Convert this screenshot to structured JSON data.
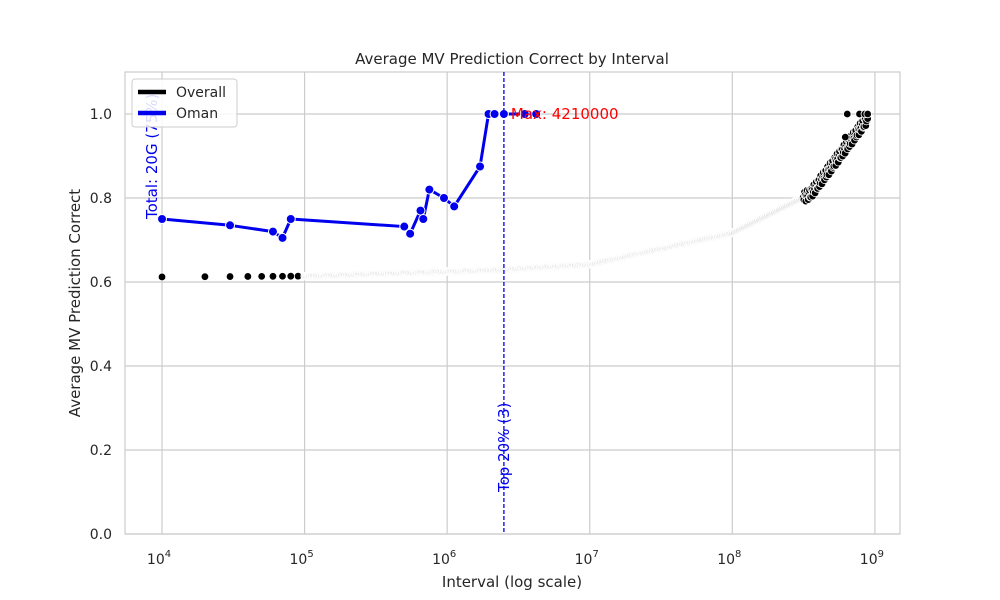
{
  "chart_data": {
    "type": "line",
    "title": "Average MV Prediction Correct by Interval",
    "xlabel": "Interval (log scale)",
    "ylabel": "Average MV Prediction Correct",
    "xscale": "log",
    "xlim": [
      5500,
      1500000000
    ],
    "ylim": [
      0,
      1.1
    ],
    "x_ticks": [
      {
        "value": 10000,
        "label": "10",
        "exp": "4"
      },
      {
        "value": 100000,
        "label": "10",
        "exp": "5"
      },
      {
        "value": 1000000,
        "label": "10",
        "exp": "6"
      },
      {
        "value": 10000000,
        "label": "10",
        "exp": "7"
      },
      {
        "value": 100000000,
        "label": "10",
        "exp": "8"
      },
      {
        "value": 1000000000,
        "label": "10",
        "exp": "9"
      }
    ],
    "y_ticks": [
      {
        "value": 0.0,
        "label": "0.0"
      },
      {
        "value": 0.2,
        "label": "0.2"
      },
      {
        "value": 0.4,
        "label": "0.4"
      },
      {
        "value": 0.6,
        "label": "0.6"
      },
      {
        "value": 0.8,
        "label": "0.8"
      },
      {
        "value": 1.0,
        "label": "1.0"
      }
    ],
    "grid": true,
    "legend": {
      "position": "top-left",
      "entries": [
        {
          "name": "Overall",
          "color": "#000000"
        },
        {
          "name": "Oman",
          "color": "#0000ee"
        }
      ]
    },
    "series": [
      {
        "name": "Oman",
        "color": "#0000ee",
        "marker": "circle",
        "x": [
          10000,
          30000,
          60000,
          70000,
          80000,
          500000,
          550000,
          650000,
          680000,
          750000,
          950000,
          1120000,
          1700000,
          1950000,
          2150000,
          2500000,
          3500000,
          4210000
        ],
        "y": [
          0.75,
          0.735,
          0.72,
          0.705,
          0.75,
          0.732,
          0.715,
          0.77,
          0.75,
          0.82,
          0.8,
          0.78,
          0.875,
          1.0,
          1.0,
          1.0,
          1.0,
          1.0
        ]
      },
      {
        "name": "Overall",
        "color": "#000000",
        "marker": "circle",
        "x_start": 10000,
        "x_end": 890000000,
        "curve": "dense"
      }
    ],
    "annotations": [
      {
        "text": "Total: 20G (75%)",
        "color": "#0000ee",
        "x": 8500,
        "y": 0.75,
        "rotation": -90
      },
      {
        "text": "Max: 4210000",
        "color": "#ff0000",
        "x": 2800000,
        "y": 1.0
      },
      {
        "text": "Top 20% (3)",
        "color": "#0000ee",
        "x": 2500000,
        "y": 0.1,
        "rotation": -90
      }
    ],
    "vline": {
      "x": 2500000,
      "color": "#0000ee",
      "style": "dashed"
    }
  }
}
